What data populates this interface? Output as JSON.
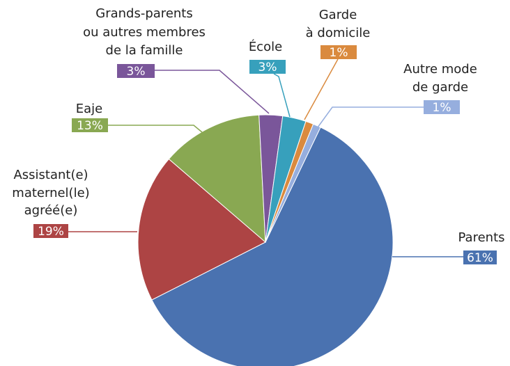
{
  "chart_data": {
    "type": "pie",
    "categories": [
      [
        "Parents"
      ],
      [
        "Assistant(e)",
        "maternel(le)",
        "agréé(e)"
      ],
      [
        "Eaje"
      ],
      [
        "Grands-parents",
        "ou autres membres",
        "de la famille"
      ],
      [
        "École"
      ],
      [
        "Garde",
        "à domicile"
      ],
      [
        "Autre mode",
        "de garde"
      ]
    ],
    "values": [
      61,
      19,
      13,
      3,
      3,
      1,
      1
    ],
    "value_labels": [
      "61%",
      "19%",
      "13%",
      "3%",
      "3%",
      "1%",
      "1%"
    ],
    "colors": [
      "#4a72b0",
      "#ad4444",
      "#89a852",
      "#7a569a",
      "#37a0bc",
      "#da8a3e",
      "#96aede"
    ]
  }
}
